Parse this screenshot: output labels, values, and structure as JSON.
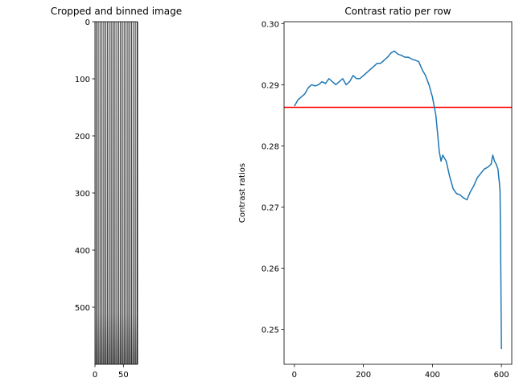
{
  "chart_data": [
    {
      "type": "heatmap",
      "title": "Cropped and binned image",
      "xlabel": "",
      "ylabel": "",
      "xlim": [
        0,
        75
      ],
      "ylim": [
        600,
        0
      ],
      "xticks": [
        0,
        50
      ],
      "yticks": [
        0,
        100,
        200,
        300,
        400,
        500
      ],
      "image": {
        "rows": 600,
        "columns": 75,
        "stripe_count": 23,
        "colormap": "gray",
        "description_of_content": "vertical light/dark stripes"
      }
    },
    {
      "type": "line",
      "title": "Contrast ratio per row",
      "xlabel": "",
      "ylabel": "Contrast ratios",
      "xlim": [
        -30,
        630
      ],
      "ylim": [
        0.2443,
        0.3003
      ],
      "xticks": [
        0,
        200,
        400,
        600
      ],
      "yticks": [
        0.25,
        0.26,
        0.27,
        0.28,
        0.29,
        0.3
      ],
      "grid": false,
      "series": [
        {
          "color": "#1f77b4",
          "x": [
            0,
            10,
            20,
            30,
            40,
            50,
            60,
            70,
            80,
            90,
            100,
            110,
            120,
            130,
            140,
            150,
            160,
            170,
            180,
            190,
            200,
            210,
            220,
            230,
            240,
            250,
            260,
            270,
            280,
            290,
            300,
            310,
            320,
            330,
            340,
            350,
            360,
            370,
            380,
            390,
            400,
            405,
            410,
            415,
            420,
            425,
            430,
            440,
            450,
            460,
            470,
            480,
            490,
            500,
            510,
            520,
            530,
            540,
            550,
            560,
            570,
            575,
            580,
            585,
            590,
            592,
            594,
            596,
            598,
            600
          ],
          "y": [
            0.2865,
            0.2875,
            0.288,
            0.2885,
            0.2895,
            0.29,
            0.2898,
            0.29,
            0.2905,
            0.2902,
            0.291,
            0.2905,
            0.29,
            0.2905,
            0.291,
            0.29,
            0.2905,
            0.2915,
            0.291,
            0.291,
            0.2915,
            0.292,
            0.2925,
            0.293,
            0.2935,
            0.2935,
            0.294,
            0.2945,
            0.2952,
            0.2955,
            0.295,
            0.2948,
            0.2945,
            0.2945,
            0.2942,
            0.294,
            0.2938,
            0.2925,
            0.2915,
            0.29,
            0.288,
            0.2865,
            0.285,
            0.282,
            0.279,
            0.2775,
            0.2785,
            0.2775,
            0.275,
            0.273,
            0.2722,
            0.272,
            0.2715,
            0.2712,
            0.2725,
            0.2735,
            0.2748,
            0.2755,
            0.2762,
            0.2765,
            0.277,
            0.2785,
            0.2775,
            0.277,
            0.2762,
            0.275,
            0.274,
            0.2725,
            0.261,
            0.2468
          ]
        }
      ],
      "reference_lines": [
        {
          "orientation": "horizontal",
          "y": 0.2863,
          "color": "#ff0000"
        }
      ]
    }
  ]
}
